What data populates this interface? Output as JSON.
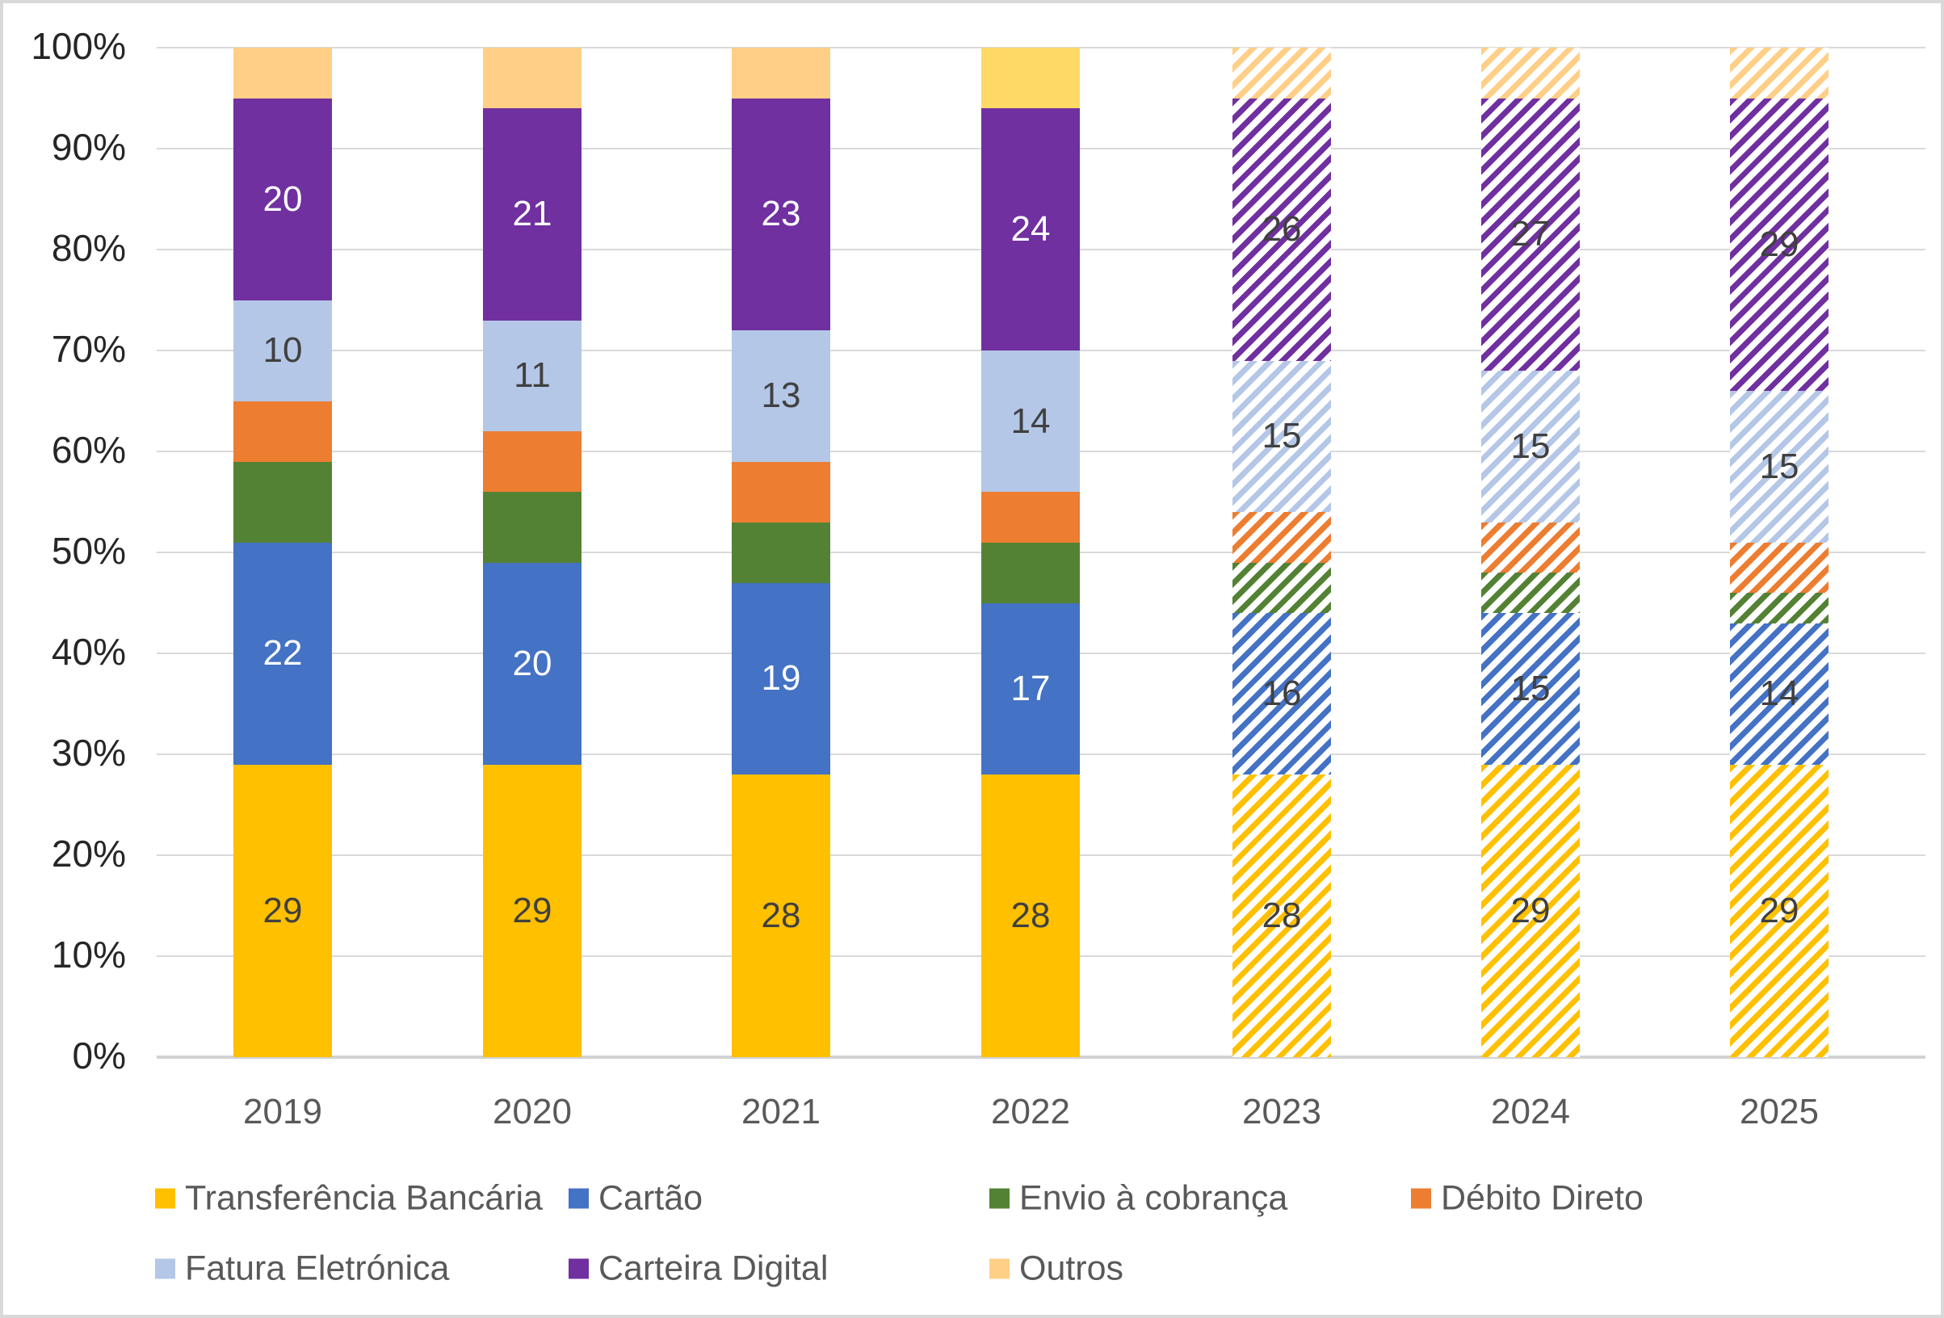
{
  "chart_data": {
    "type": "bar",
    "subtype": "stacked-100-percent",
    "unit": "%",
    "title": "",
    "xlabel": "",
    "ylabel": "",
    "categories": [
      "2019",
      "2020",
      "2021",
      "2022",
      "2023",
      "2024",
      "2025"
    ],
    "forecast_hatched_categories": [
      "2023",
      "2024",
      "2025"
    ],
    "series": [
      {
        "name": "Transferência Bancária",
        "color": "#FFC000",
        "values": [
          29,
          29,
          28,
          28,
          28,
          29,
          29
        ],
        "labeled": true,
        "label_color": "#404040",
        "hatch_label_color": "#404040"
      },
      {
        "name": "Cartão",
        "color": "#4472C4",
        "values": [
          22,
          20,
          19,
          17,
          16,
          15,
          14
        ],
        "labeled": true,
        "label_color": "#FFFFFF",
        "hatch_label_color": "#404040"
      },
      {
        "name": "Envio à cobrança",
        "color": "#548235",
        "values": [
          8,
          7,
          6,
          6,
          5,
          4,
          3
        ],
        "labeled": false
      },
      {
        "name": "Débito Direto",
        "color": "#ED7D31",
        "values": [
          6,
          6,
          6,
          5,
          5,
          5,
          5
        ],
        "labeled": false
      },
      {
        "name": "Fatura Eletrónica",
        "color": "#B4C7E7",
        "values": [
          10,
          11,
          13,
          14,
          15,
          15,
          15
        ],
        "labeled": true,
        "label_color": "#404040",
        "hatch_label_color": "#404040"
      },
      {
        "name": "Carteira Digital",
        "color": "#7030A0",
        "values": [
          20,
          21,
          23,
          24,
          26,
          27,
          29
        ],
        "labeled": true,
        "label_color": "#FFFFFF",
        "hatch_label_color": "#404040"
      },
      {
        "name": "Outros",
        "color": "#FFCF87",
        "color_overrides": {
          "3": "#FFD966"
        },
        "values": [
          5,
          6,
          5,
          6,
          5,
          5,
          5
        ],
        "labeled": false
      }
    ],
    "y_axis": {
      "min": 0,
      "max": 100,
      "ticks": [
        "0%",
        "10%",
        "20%",
        "30%",
        "40%",
        "50%",
        "60%",
        "70%",
        "80%",
        "90%",
        "100%"
      ]
    },
    "grid": true,
    "legend_position": "bottom",
    "legend_rows": [
      [
        "Transferência Bancária",
        "Cartão",
        "Envio à cobrança",
        "Débito Direto"
      ],
      [
        "Fatura Eletrónica",
        "Carteira Digital",
        "Outros"
      ]
    ]
  }
}
